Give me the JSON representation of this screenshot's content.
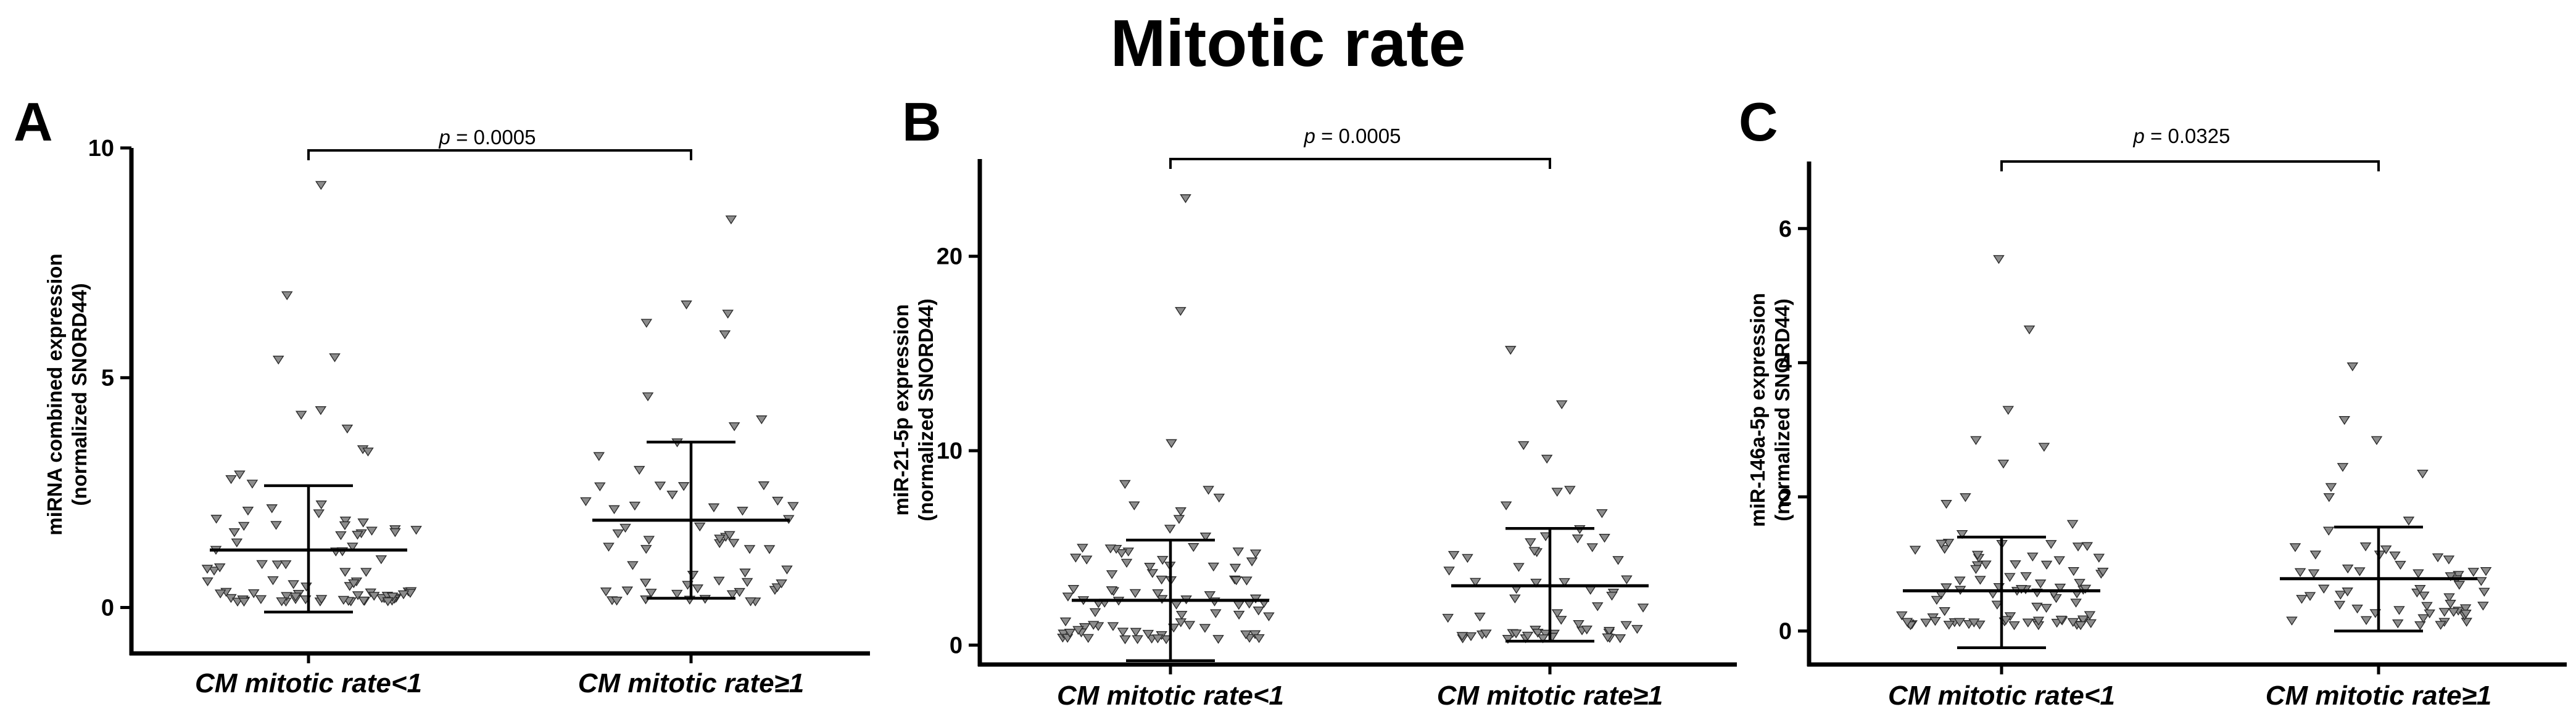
{
  "figure_title": "Mitotic rate",
  "chart_data": [
    {
      "panel": "A",
      "type": "scatter",
      "ylabel": [
        "miRNA combined expression",
        "(normalized SNORD44)"
      ],
      "categories": [
        "CM mitotic rate<1",
        "CM mitotic rate≥1"
      ],
      "ylim": [
        -1,
        10
      ],
      "yticks": [
        0,
        5,
        10
      ],
      "p_prefix": "p",
      "p_rest": " = 0.0005",
      "groups": [
        {
          "name": "CM mitotic rate<1",
          "mean": 1.25,
          "sd_low": -0.1,
          "sd_high": 2.65,
          "n": 90,
          "max_values": [
            9.2,
            6.8,
            5.45,
            5.4,
            4.3,
            4.2,
            3.9,
            3.45,
            3.4,
            2.9,
            2.8,
            2.7
          ]
        },
        {
          "name": "CM mitotic rate≥1",
          "mean": 1.9,
          "sd_low": 0.2,
          "sd_high": 3.6,
          "n": 62,
          "max_values": [
            8.45,
            6.6,
            6.4,
            6.2,
            5.95,
            4.6,
            4.1,
            3.95,
            3.6,
            3.3,
            3.0
          ]
        }
      ]
    },
    {
      "panel": "B",
      "type": "scatter",
      "ylabel": [
        "miR-21-5p expression",
        "(normalized SNORD44)"
      ],
      "categories": [
        "CM mitotic rate<1",
        "CM mitotic rate≥1"
      ],
      "ylim": [
        -1,
        25
      ],
      "yticks": [
        0,
        10,
        20
      ],
      "p_prefix": "p",
      "p_rest": " = 0.0005",
      "groups": [
        {
          "name": "CM mitotic rate<1",
          "mean": 2.3,
          "sd_low": -0.8,
          "sd_high": 5.4,
          "n": 90,
          "max_values": [
            23.0,
            17.2,
            10.4,
            8.3,
            8.0,
            7.6,
            7.2,
            6.9,
            6.5,
            6.0,
            5.6
          ]
        },
        {
          "name": "CM mitotic rate≥1",
          "mean": 3.05,
          "sd_low": 0.2,
          "sd_high": 6.0,
          "n": 62,
          "max_values": [
            15.2,
            12.4,
            10.3,
            9.6,
            8.0,
            7.9,
            7.2,
            6.8
          ]
        }
      ]
    },
    {
      "panel": "C",
      "type": "scatter",
      "ylabel": [
        "miR-146a-5p expression",
        "(normalized SNORD44)"
      ],
      "categories": [
        "CM mitotic rate<1",
        "CM mitotic rate≥1"
      ],
      "ylim": [
        -0.5,
        7
      ],
      "yticks": [
        0,
        2,
        4,
        6
      ],
      "p_prefix": "p",
      "p_rest": " = 0.0325",
      "groups": [
        {
          "name": "CM mitotic rate<1",
          "mean": 0.6,
          "sd_low": -0.25,
          "sd_high": 1.4,
          "n": 90,
          "max_values": [
            5.55,
            4.5,
            3.3,
            2.85,
            2.75,
            2.5,
            2.0,
            1.9,
            1.6,
            1.45
          ]
        },
        {
          "name": "CM mitotic rate≥1",
          "mean": 0.78,
          "sd_low": 0.0,
          "sd_high": 1.55,
          "n": 62,
          "max_values": [
            3.95,
            3.15,
            2.85,
            2.45,
            2.35,
            2.15,
            2.0,
            1.65,
            1.5
          ]
        }
      ]
    }
  ]
}
